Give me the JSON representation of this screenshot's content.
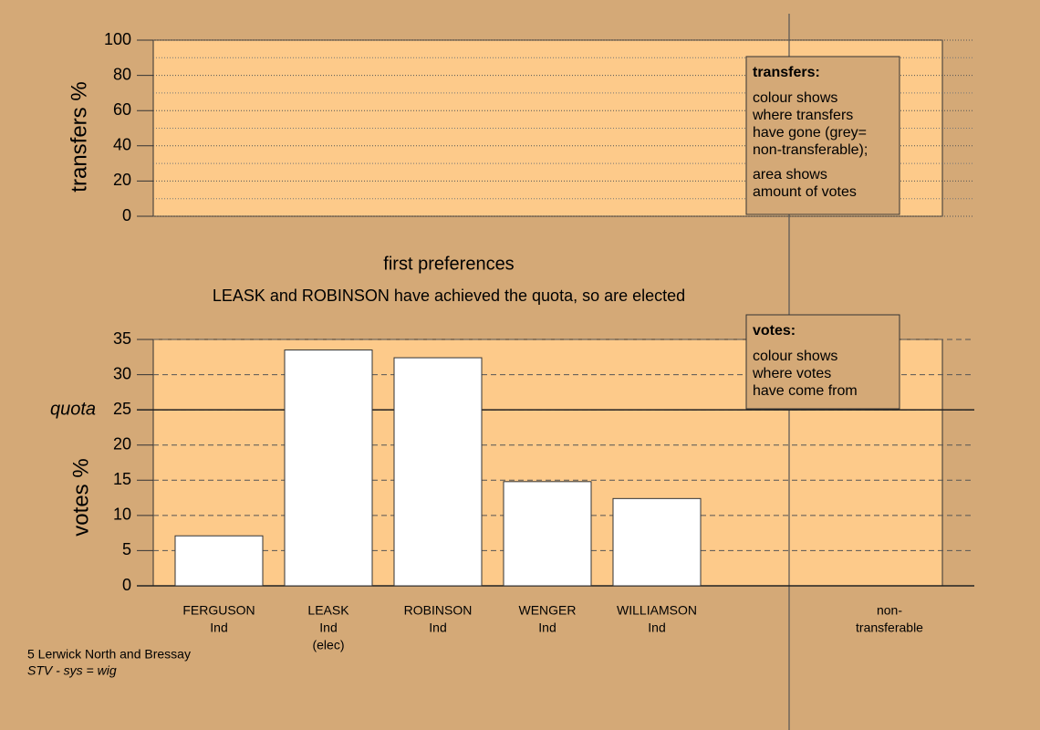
{
  "chart_data": [
    {
      "type": "transfers",
      "ylabel": "transfers %",
      "ylim": [
        0,
        100
      ],
      "yticks": [
        0,
        20,
        40,
        60,
        80,
        100
      ],
      "minor_yticks": [
        10,
        30,
        50,
        70,
        90
      ],
      "legend": {
        "title": "transfers:",
        "lines": [
          "colour shows",
          "where transfers",
          "have gone (grey=",
          "non-transferable);"
        ],
        "lines2": [
          "area shows",
          "amount of votes"
        ]
      }
    },
    {
      "type": "bar",
      "title": "first preferences",
      "subtitle": "LEASK and ROBINSON have achieved the quota, so are elected",
      "ylabel": "votes %",
      "categories": [
        [
          "FERGUSON",
          "Ind"
        ],
        [
          "LEASK",
          "Ind",
          "(elec)"
        ],
        [
          "ROBINSON",
          "Ind"
        ],
        [
          "WENGER",
          "Ind"
        ],
        [
          "WILLIAMSON",
          "Ind"
        ],
        [
          "non-",
          "transferable"
        ]
      ],
      "values": [
        7.1,
        33.5,
        32.4,
        14.8,
        12.4,
        null
      ],
      "color": "#ffffff",
      "ylim": [
        0,
        35
      ],
      "yticks": [
        0,
        5,
        10,
        15,
        20,
        25,
        30,
        35
      ],
      "quota": 25,
      "quota_label": "quota",
      "legend": {
        "title": "votes:",
        "lines": [
          "colour shows",
          "where votes",
          "have come from"
        ]
      }
    }
  ],
  "footer": {
    "line1": "5 Lerwick North and Bressay",
    "line2": "STV - sys = wig"
  }
}
